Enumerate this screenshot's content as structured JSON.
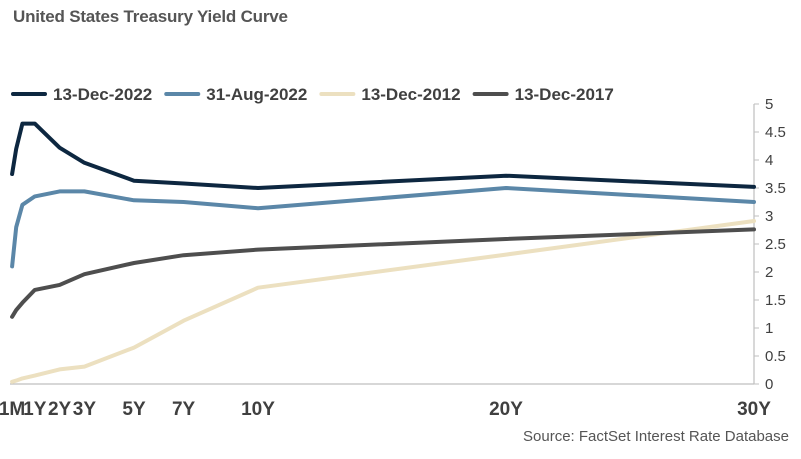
{
  "title": "United States Treasury Yield Curve",
  "source": "Source: FactSet Interest Rate Database",
  "chart_data": {
    "type": "line",
    "title": "United States Treasury Yield Curve",
    "xlabel": "",
    "ylabel": "",
    "x_type": "maturity_years",
    "xlim": [
      0,
      30
    ],
    "ylim": [
      0,
      5
    ],
    "yticks": [
      0,
      0.5,
      1,
      1.5,
      2,
      2.5,
      3,
      3.5,
      4,
      4.5,
      5
    ],
    "ytick_labels": [
      "0",
      "0.5",
      "1",
      "1.5",
      "2",
      "2.5",
      "3",
      "3.5",
      "4",
      "4.5",
      "5"
    ],
    "xticks": [
      {
        "label": "1M",
        "value": 0.083
      },
      {
        "label": "1Y",
        "value": 1
      },
      {
        "label": "2Y",
        "value": 2
      },
      {
        "label": "3Y",
        "value": 3
      },
      {
        "label": "5Y",
        "value": 5
      },
      {
        "label": "7Y",
        "value": 7
      },
      {
        "label": "10Y",
        "value": 10
      },
      {
        "label": "20Y",
        "value": 20
      },
      {
        "label": "30Y",
        "value": 30
      }
    ],
    "grid": false,
    "legend_position": "top",
    "series": [
      {
        "name": "13-Dec-2022",
        "color": "#0d2740",
        "x": [
          0.083,
          0.25,
          0.5,
          1,
          2,
          3,
          5,
          7,
          10,
          20,
          30
        ],
        "values": [
          3.75,
          4.2,
          4.65,
          4.65,
          4.22,
          3.95,
          3.63,
          3.58,
          3.5,
          3.72,
          3.52
        ]
      },
      {
        "name": "31-Aug-2022",
        "color": "#5b87a8",
        "x": [
          0.083,
          0.25,
          0.5,
          1,
          2,
          3,
          5,
          7,
          10,
          20,
          30
        ],
        "values": [
          2.1,
          2.8,
          3.2,
          3.35,
          3.44,
          3.44,
          3.28,
          3.25,
          3.14,
          3.5,
          3.25
        ]
      },
      {
        "name": "13-Dec-2012",
        "color": "#ece0c0",
        "x": [
          0.083,
          0.25,
          0.5,
          1,
          2,
          3,
          5,
          7,
          10,
          20,
          30
        ],
        "values": [
          0.04,
          0.06,
          0.1,
          0.15,
          0.26,
          0.31,
          0.65,
          1.13,
          1.72,
          2.31,
          2.91
        ]
      },
      {
        "name": "13-Dec-2017",
        "color": "#4e4e4e",
        "x": [
          0.083,
          0.25,
          0.5,
          1,
          2,
          3,
          5,
          7,
          10,
          20,
          30
        ],
        "values": [
          1.2,
          1.32,
          1.45,
          1.68,
          1.77,
          1.96,
          2.16,
          2.3,
          2.4,
          2.59,
          2.76
        ]
      }
    ]
  }
}
